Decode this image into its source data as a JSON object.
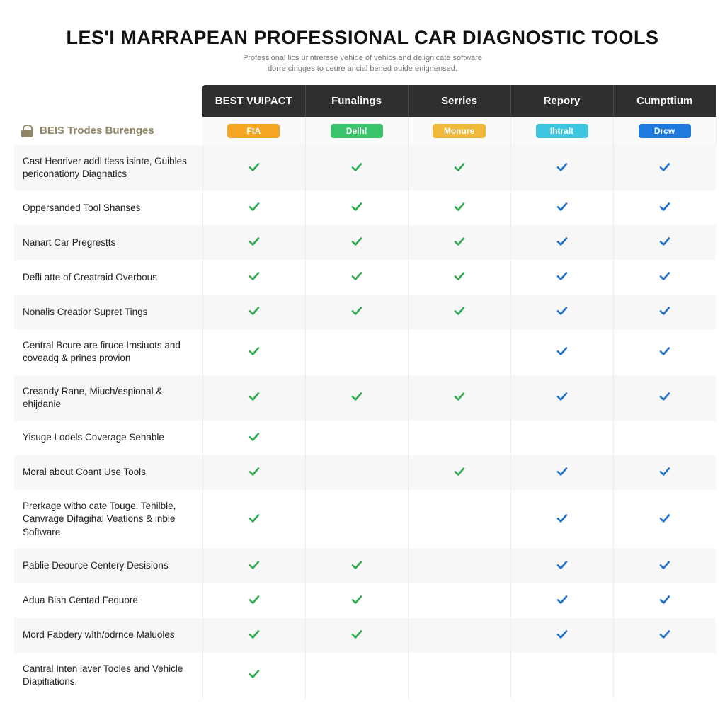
{
  "header": {
    "title": "Les'I MARRAPEAN PROFESSIONAL CAR DIAGNOSTIC TOOLS",
    "subtitle_line1": "Professional lics urintrersse vehide of vehics and delignicate software",
    "subtitle_line2": "dorre cingges to ceure ancial bened ouide enignensed."
  },
  "category": {
    "label": "BEIS Trodes Burenges"
  },
  "columns": [
    {
      "header": "BEST VUIPACT",
      "badge": "FtA",
      "badge_bg": "#f5a623",
      "badge_fg": "#ffffff"
    },
    {
      "header": "Funalings",
      "badge": "Delhl",
      "badge_bg": "#39c46b",
      "badge_fg": "#ffffff"
    },
    {
      "header": "Serries",
      "badge": "Monure",
      "badge_bg": "#f0b93a",
      "badge_fg": "#ffffff"
    },
    {
      "header": "Repory",
      "badge": "Ihtralt",
      "badge_bg": "#3ec6e0",
      "badge_fg": "#ffffff"
    },
    {
      "header": "Cumpttium",
      "badge": "Drcw",
      "badge_bg": "#1f7ae0",
      "badge_fg": "#ffffff"
    }
  ],
  "check_colors": {
    "green": "#2fa84f",
    "blue": "#1f6fc9"
  },
  "rows": [
    {
      "label": "Cast Heoriver addl tless isinte, Guibles periconationy Diagnatics",
      "cells": [
        "green",
        "green",
        "green",
        "blue",
        "blue"
      ]
    },
    {
      "label": "Oppersanded Tool Shanses",
      "cells": [
        "green",
        "green",
        "green",
        "blue",
        "blue"
      ]
    },
    {
      "label": "Nanart Car Pregrestts",
      "cells": [
        "green",
        "green",
        "green",
        "blue",
        "blue"
      ]
    },
    {
      "label": "Defli atte of Creatraid Overbous",
      "cells": [
        "green",
        "green",
        "green",
        "blue",
        "blue"
      ]
    },
    {
      "label": "Nonalis Creatior Supret Tings",
      "cells": [
        "green",
        "green",
        "green",
        "blue",
        "blue"
      ]
    },
    {
      "label": "Central Bcure are firuce Imsiuots and coveadg & prines provion",
      "cells": [
        "green",
        "",
        "",
        "blue",
        "blue"
      ]
    },
    {
      "label": "Creandy Rane, Miuch/espional & ehijdanie",
      "cells": [
        "green",
        "green",
        "green",
        "blue",
        "blue"
      ]
    },
    {
      "label": "Yisuge Lodels Coverage Sehable",
      "cells": [
        "green",
        "",
        "",
        "",
        ""
      ]
    },
    {
      "label": "Moral about Coant Use Tools",
      "cells": [
        "green",
        "",
        "green",
        "blue",
        "blue"
      ]
    },
    {
      "label": "Prerkage witho cate Touge. Tehilble, Canvrage Difagihal Veations & inble Software",
      "cells": [
        "green",
        "",
        "",
        "blue",
        "blue"
      ]
    },
    {
      "label": "Pablie Deource Centery Desisions",
      "cells": [
        "green",
        "green",
        "",
        "blue",
        "blue"
      ]
    },
    {
      "label": "Adua Bish Centad Fequore",
      "cells": [
        "green",
        "green",
        "",
        "blue",
        "blue"
      ]
    },
    {
      "label": "Mord Fabdery with/odrnce Maluoles",
      "cells": [
        "green",
        "green",
        "",
        "blue",
        "blue"
      ]
    },
    {
      "label": "Cantral Inten laver Tooles and Vehicle Diapifiations.",
      "cells": [
        "green",
        "",
        "",
        "",
        ""
      ]
    }
  ]
}
